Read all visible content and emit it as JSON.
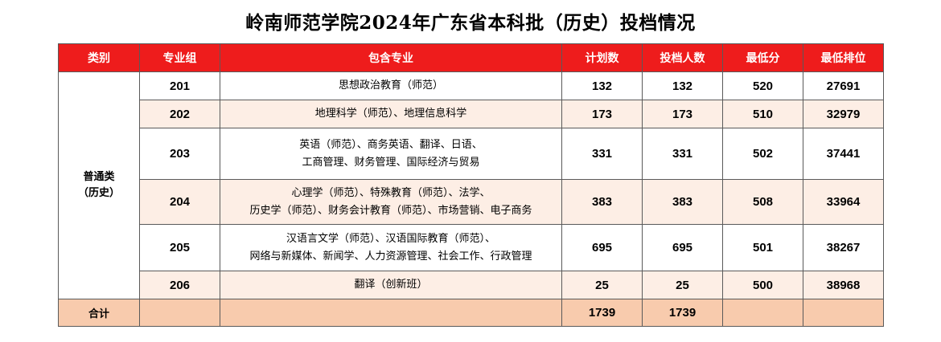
{
  "title": "岭南师范学院2024年广东省本科批（历史）投档情况",
  "table": {
    "headers": [
      "类别",
      "专业组",
      "包含专业",
      "计划数",
      "投档人数",
      "最低分",
      "最低排位"
    ],
    "category": {
      "line1": "普通类",
      "line2": "（历史）"
    },
    "rows": [
      {
        "group": "201",
        "majors_line1": "思想政治教育（师范）",
        "majors_line2": "",
        "plan": "132",
        "admitted": "132",
        "min_score": "520",
        "min_rank": "27691"
      },
      {
        "group": "202",
        "majors_line1": "地理科学（师范）、地理信息科学",
        "majors_line2": "",
        "plan": "173",
        "admitted": "173",
        "min_score": "510",
        "min_rank": "32979"
      },
      {
        "group": "203",
        "majors_line1": "英语（师范）、商务英语、翻译、日语、",
        "majors_line2": "工商管理、财务管理、国际经济与贸易",
        "plan": "331",
        "admitted": "331",
        "min_score": "502",
        "min_rank": "37441"
      },
      {
        "group": "204",
        "majors_line1": "心理学（师范）、特殊教育（师范）、法学、",
        "majors_line2": "历史学（师范）、财务会计教育（师范）、市场营销、电子商务",
        "plan": "383",
        "admitted": "383",
        "min_score": "508",
        "min_rank": "33964"
      },
      {
        "group": "205",
        "majors_line1": "汉语言文学（师范）、汉语国际教育（师范）、",
        "majors_line2": "网络与新媒体、新闻学、人力资源管理、社会工作、行政管理",
        "plan": "695",
        "admitted": "695",
        "min_score": "501",
        "min_rank": "38267"
      },
      {
        "group": "206",
        "majors_line1": "翻译（创新班）",
        "majors_line2": "",
        "plan": "25",
        "admitted": "25",
        "min_score": "500",
        "min_rank": "38968"
      }
    ],
    "total": {
      "label": "合计",
      "plan": "1739",
      "admitted": "1739"
    }
  },
  "colors": {
    "header_bg": "#ee1c1c",
    "header_text": "#ffffff",
    "alt_row_bg": "#fdeee5",
    "total_row_bg": "#f8cbad",
    "border": "#5a5a5a"
  }
}
